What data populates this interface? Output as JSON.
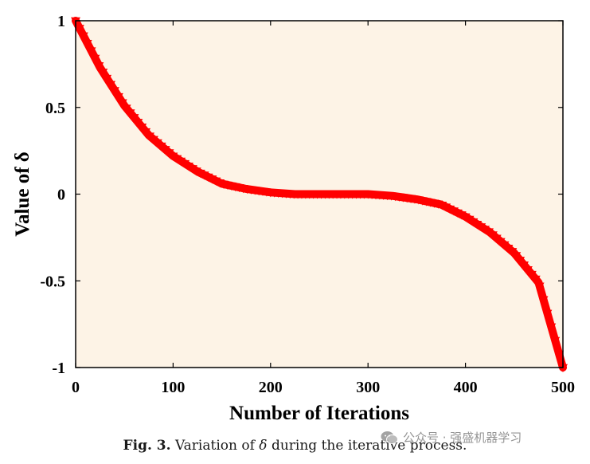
{
  "chart_data": {
    "type": "line",
    "xlabel": "Number of Iterations",
    "ylabel": "Value of δ",
    "xlim": [
      0,
      500
    ],
    "ylim": [
      -1,
      1
    ],
    "xticks": [
      0,
      100,
      200,
      300,
      400,
      500
    ],
    "yticks": [
      1,
      0.5,
      0,
      -0.5,
      -1
    ],
    "xtick_labels": [
      "0",
      "100",
      "200",
      "300",
      "400",
      "500"
    ],
    "ytick_labels": [
      "1",
      "0.5",
      "0",
      "-0.5",
      "-1"
    ],
    "grid": false,
    "legend": "none",
    "plot_background": "#fdf3e6",
    "series": [
      {
        "color": "#ff0000",
        "marker": "triangle",
        "x": [
          0,
          25,
          50,
          75,
          100,
          125,
          150,
          175,
          200,
          225,
          250,
          275,
          300,
          325,
          350,
          375,
          400,
          425,
          450,
          475,
          500
        ],
        "y": [
          1.0,
          0.73,
          0.51,
          0.34,
          0.22,
          0.13,
          0.06,
          0.03,
          0.01,
          0.0,
          0.0,
          0.0,
          0.0,
          -0.01,
          -0.03,
          -0.06,
          -0.13,
          -0.22,
          -0.34,
          -0.51,
          -1.0
        ]
      }
    ]
  },
  "caption": {
    "label": "Fig. 3.",
    "text_before": "Variation of",
    "symbol": "δ",
    "text_after": "during the iterative process."
  },
  "watermark": {
    "text": "公众号 · 强盛机器学习",
    "icon": "wechat-icon"
  }
}
